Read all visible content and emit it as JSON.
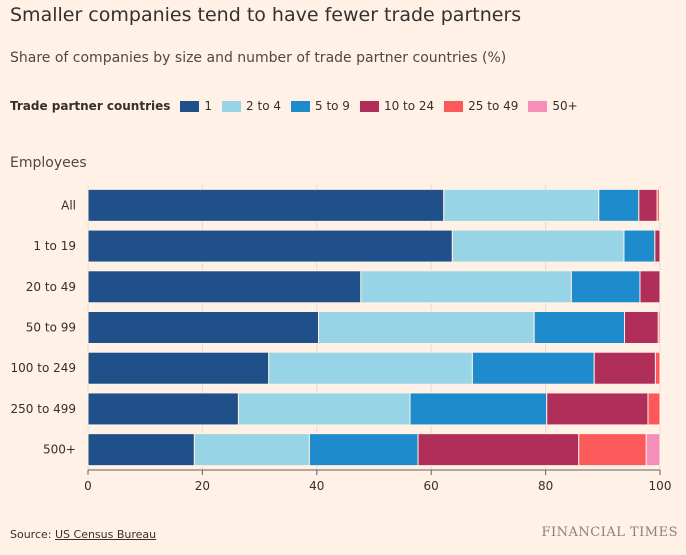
{
  "title": "Smaller companies tend to have fewer trade partners",
  "subtitle": "Share of companies by size and number of trade partner countries (%)",
  "legend": {
    "title": "Trade partner countries",
    "items": [
      {
        "label": "1",
        "color": "#1f5089"
      },
      {
        "label": "2 to 4",
        "color": "#96d4e6"
      },
      {
        "label": "5 to 9",
        "color": "#1e8ccc"
      },
      {
        "label": "10 to 24",
        "color": "#b02e5a"
      },
      {
        "label": "25 to 49",
        "color": "#fc5a5a"
      },
      {
        "label": "50+",
        "color": "#f58fb7"
      }
    ]
  },
  "y_axis_title": "Employees",
  "footer": {
    "source_prefix": "Source: ",
    "source_link": "US Census Bureau",
    "brand": "FINANCIAL TIMES"
  },
  "chart_data": {
    "type": "bar",
    "orientation": "horizontal",
    "stacked": true,
    "categories": [
      "All",
      "1 to 19",
      "20 to 49",
      "50 to 99",
      "100 to 249",
      "250 to 499",
      "500+"
    ],
    "series": [
      {
        "name": "1",
        "color": "#1f5089",
        "values": [
          62.2,
          63.7,
          47.7,
          40.3,
          31.6,
          26.3,
          18.6
        ]
      },
      {
        "name": "2 to 4",
        "color": "#96d4e6",
        "values": [
          27.1,
          30.0,
          36.8,
          37.7,
          35.6,
          30.0,
          20.1
        ]
      },
      {
        "name": "5 to 9",
        "color": "#1e8ccc",
        "values": [
          7.0,
          5.4,
          12.0,
          15.8,
          21.3,
          23.9,
          19.0
        ]
      },
      {
        "name": "10 to 24",
        "color": "#b02e5a",
        "values": [
          3.2,
          0.9,
          3.5,
          5.9,
          10.7,
          17.7,
          28.1
        ]
      },
      {
        "name": "25 to 49",
        "color": "#fc5a5a",
        "values": [
          0.4,
          0.0,
          0.0,
          0.3,
          0.8,
          2.1,
          11.8
        ]
      },
      {
        "name": "50+",
        "color": "#f58fb7",
        "values": [
          0.1,
          0.0,
          0.0,
          0.0,
          0.0,
          0.0,
          2.4
        ]
      }
    ],
    "x_ticks": [
      0,
      20,
      40,
      60,
      80,
      100
    ],
    "xlim": [
      0,
      100
    ],
    "xlabel": "",
    "ylabel": "Employees",
    "grid": true,
    "legend_position": "top"
  }
}
